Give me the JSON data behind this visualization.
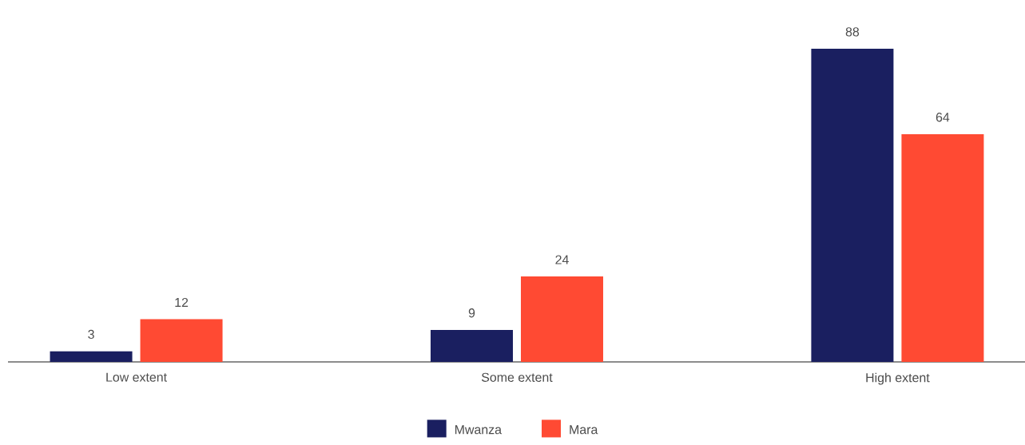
{
  "chart_data": {
    "type": "bar",
    "categories": [
      "Low extent",
      "Some extent",
      "High extent"
    ],
    "series": [
      {
        "name": "Mwanza",
        "color": "#1a1f60",
        "values": [
          3,
          9,
          88
        ]
      },
      {
        "name": "Mara",
        "color": "#ff4a33",
        "values": [
          12,
          24,
          64
        ]
      }
    ],
    "data_labels": true,
    "legend": "bottom"
  }
}
